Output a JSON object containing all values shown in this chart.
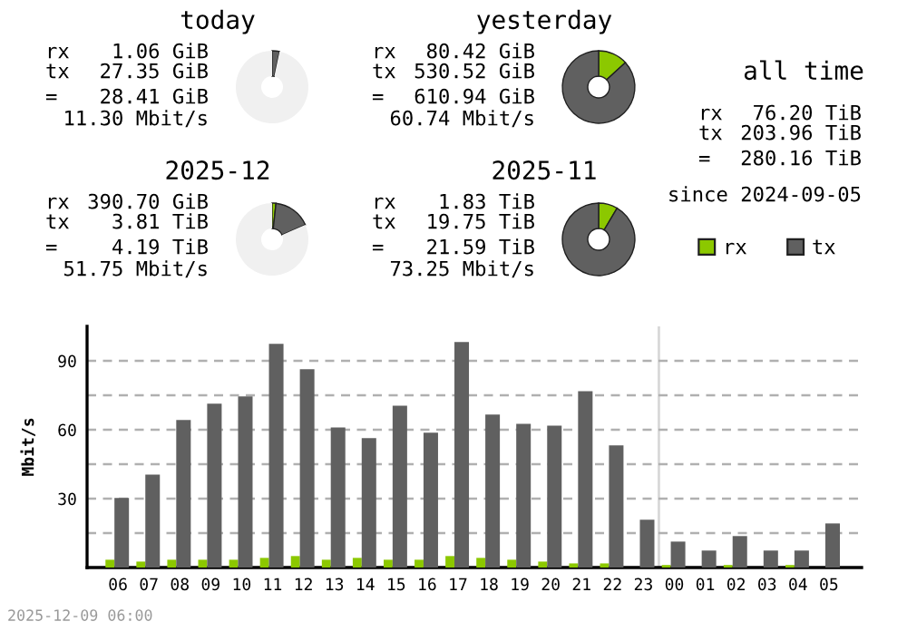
{
  "chart_data": [
    {
      "type": "donut",
      "title": "today",
      "categories": [
        null,
        null,
        null
      ],
      "values": [
        null,
        3.3,
        96.6
      ],
      "colors": [
        "#8cc800",
        "#606060",
        "#f0f0f0"
      ],
      "annotations": [
        "rx",
        "1.06 GiB",
        "tx",
        "27.35 GiB",
        "=",
        "28.41 GiB",
        "11.30 Mbit/s"
      ]
    },
    {
      "type": "donut",
      "title": "yesterday",
      "categories": [
        null,
        null
      ],
      "values": [
        13.2,
        86.8
      ],
      "colors": [
        "#8cc800",
        "#606060"
      ],
      "annotations": [
        "rx",
        "80.42 GiB",
        "tx",
        "530.52 GiB",
        "=",
        "610.94 GiB",
        "60.74 Mbit/s"
      ]
    },
    {
      "type": "other",
      "title": "all time",
      "annotations": [
        "rx",
        "76.20 TiB",
        "tx",
        "203.96 TiB",
        "=",
        "280.16 TiB",
        "since 2024-09-05"
      ]
    },
    {
      "type": "donut",
      "title": "2025-12",
      "categories": [
        null,
        null,
        null
      ],
      "values": [
        1.7,
        16.7,
        81.6
      ],
      "colors": [
        "#8cc800",
        "#606060",
        "#f0f0f0"
      ],
      "annotations": [
        "rx",
        "390.70 GiB",
        "tx",
        "3.81 TiB",
        "=",
        "4.19 TiB",
        "51.75 Mbit/s"
      ]
    },
    {
      "type": "donut",
      "title": "2025-11",
      "categories": [
        null,
        null
      ],
      "values": [
        8.5,
        91.5
      ],
      "colors": [
        "#8cc800",
        "#606060"
      ],
      "annotations": [
        "rx",
        "1.83 TiB",
        "tx",
        "19.75 TiB",
        "=",
        "21.59 TiB",
        "73.25 Mbit/s"
      ]
    },
    {
      "type": "bar",
      "ylabel": "Mbit/s",
      "categories": [
        "06",
        "07",
        "08",
        "09",
        "10",
        "11",
        "12",
        "13",
        "14",
        "15",
        "16",
        "17",
        "18",
        "19",
        "20",
        "21",
        "22",
        "23",
        "00",
        "01",
        "02",
        "03",
        "04",
        "05"
      ],
      "series": [
        {
          "name": "rx",
          "color": "#8cc800",
          "values": [
            3.4,
            2.6,
            3.4,
            3.4,
            3.4,
            4.2,
            5,
            3.4,
            4.2,
            3.4,
            3.4,
            5,
            4.2,
            3.4,
            2.6,
            1.8,
            1.8,
            0,
            1.1,
            0,
            1.1,
            0,
            1.1,
            0
          ]
        },
        {
          "name": "tx",
          "color": "#606060",
          "values": [
            30.3,
            40.5,
            64.2,
            71.3,
            74.5,
            97.4,
            86.3,
            61,
            56.3,
            70.5,
            58.7,
            98.2,
            66.6,
            62.6,
            61.8,
            76.8,
            53.2,
            20.8,
            11.3,
            7.4,
            13.7,
            7.4,
            7.4,
            19.2
          ]
        }
      ],
      "ylim": [
        0,
        105
      ],
      "yticks": [
        {
          "value": 15,
          "label": null
        },
        30,
        {
          "value": 45,
          "label": null
        },
        60,
        {
          "value": 75,
          "label": null
        },
        90
      ],
      "grid": "y",
      "legend": "top right",
      "ref_lines": [
        {
          "axis": "x",
          "value": "00",
          "color": "#d8d8d8"
        }
      ],
      "annotations": [
        "2025-12-09 06:00"
      ]
    }
  ]
}
